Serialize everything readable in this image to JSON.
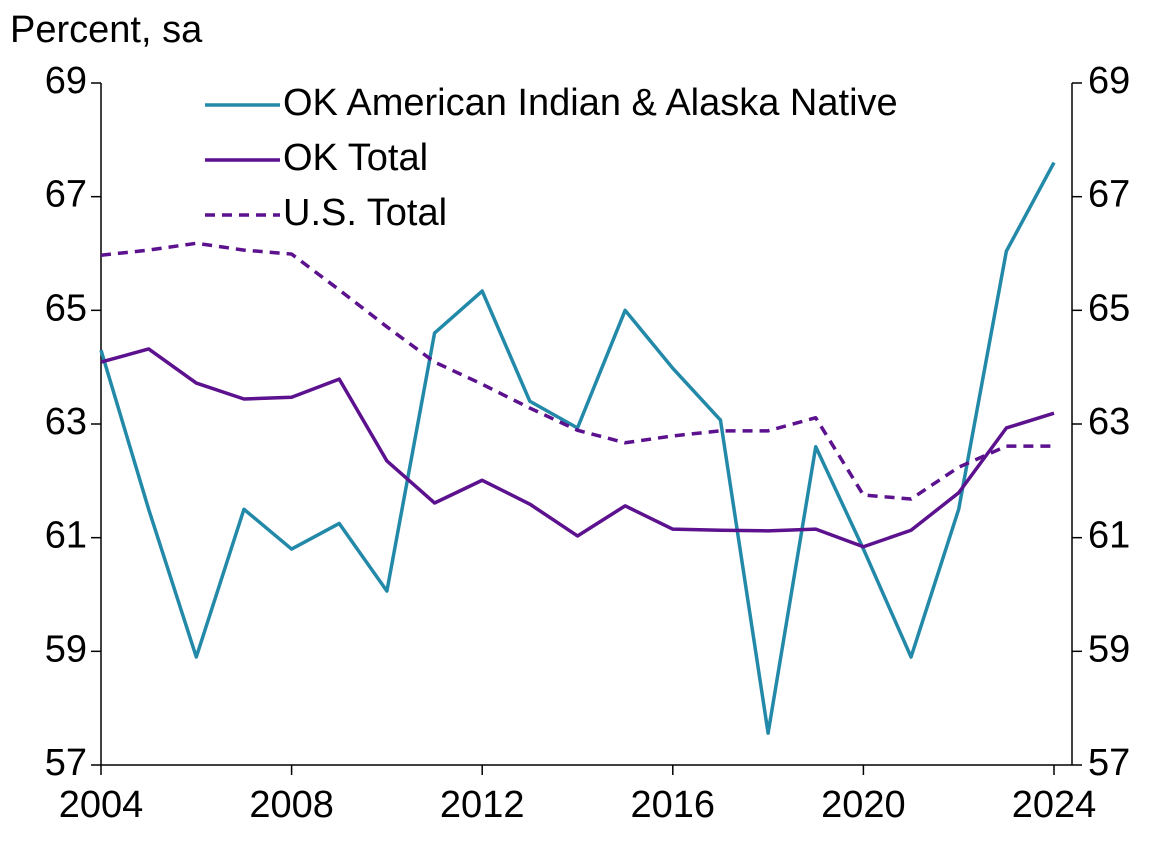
{
  "chart_data": {
    "type": "line",
    "y_label": "Percent, sa",
    "x": [
      2004,
      2005,
      2006,
      2007,
      2008,
      2009,
      2010,
      2011,
      2012,
      2013,
      2014,
      2015,
      2016,
      2017,
      2018,
      2019,
      2020,
      2021,
      2022,
      2023,
      2024
    ],
    "series": [
      {
        "name": "OK American Indian & Alaska Native",
        "color": "#2389a9",
        "dashed": false,
        "values": [
          64.3,
          61.5,
          58.9,
          61.5,
          60.8,
          61.25,
          60.06,
          64.6,
          65.34,
          63.4,
          62.93,
          65.0,
          63.98,
          63.07,
          57.56,
          62.6,
          60.8,
          58.9,
          61.5,
          66.04,
          67.6
        ]
      },
      {
        "name": "OK Total",
        "color": "#5c118e",
        "dashed": false,
        "values": [
          64.09,
          64.32,
          63.72,
          63.44,
          63.47,
          63.79,
          62.35,
          61.61,
          62.01,
          61.59,
          61.03,
          61.56,
          61.15,
          61.13,
          61.12,
          61.15,
          60.84,
          61.13,
          61.79,
          62.93,
          63.19
        ]
      },
      {
        "name": "U.S. Total",
        "color": "#5c118e",
        "dashed": true,
        "values": [
          65.97,
          66.06,
          66.18,
          66.06,
          65.99,
          65.36,
          64.71,
          64.09,
          63.7,
          63.28,
          62.89,
          62.67,
          62.79,
          62.88,
          62.88,
          63.11,
          61.75,
          61.68,
          62.24,
          62.61,
          62.61
        ]
      }
    ],
    "xlim": [
      2004,
      2024
    ],
    "xticks": [
      2004,
      2008,
      2012,
      2016,
      2020,
      2024
    ],
    "ylim": [
      57,
      69
    ],
    "yticks": [
      57,
      59,
      61,
      63,
      65,
      67,
      69
    ],
    "y2lim": [
      57,
      69
    ],
    "y2ticks": [
      57,
      59,
      61,
      63,
      65,
      67,
      69
    ],
    "legend": "upper-left"
  }
}
